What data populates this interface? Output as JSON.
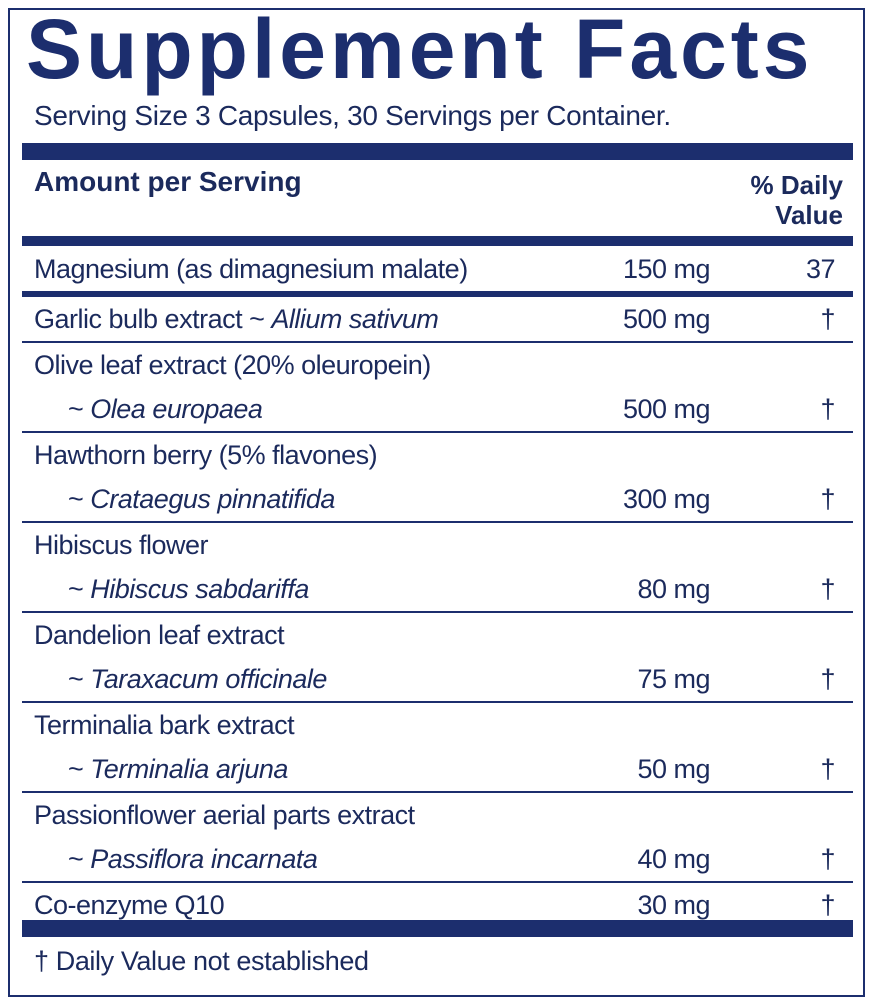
{
  "title": "Supplement Facts",
  "serving": "Serving Size 3 Capsules, 30 Servings per Container.",
  "header": {
    "amount_per_serving": "Amount per Serving",
    "daily_value_line1": "% Daily",
    "daily_value_line2": "Value"
  },
  "rows": [
    {
      "name": "Magnesium (as dimagnesium malate)",
      "latin": "",
      "amount": "150 mg",
      "dv": "37"
    },
    {
      "name": "Garlic bulb extract ~ ",
      "latin": "Allium sativum",
      "amount": "500 mg",
      "dv": "†"
    },
    {
      "name": "Olive leaf extract (20% oleuropein)",
      "latin": "Olea europaea",
      "amount": "500 mg",
      "dv": "†"
    },
    {
      "name": "Hawthorn berry (5% flavones)",
      "latin": "Crataegus pinnatifida",
      "amount": "300 mg",
      "dv": "†"
    },
    {
      "name": "Hibiscus flower",
      "latin": "Hibiscus sabdariffa",
      "amount": "80 mg",
      "dv": "†"
    },
    {
      "name": "Dandelion leaf extract",
      "latin": "Taraxacum officinale",
      "amount": "75 mg",
      "dv": "†"
    },
    {
      "name": "Terminalia bark extract",
      "latin": "Terminalia arjuna",
      "amount": "50 mg",
      "dv": "†"
    },
    {
      "name": "Passionflower aerial parts extract",
      "latin": "Passiflora incarnata",
      "amount": "40 mg",
      "dv": "†"
    },
    {
      "name": "Co-enzyme Q10",
      "latin": "",
      "amount": "30 mg",
      "dv": "†"
    }
  ],
  "tilde": "~ ",
  "footnote": "† Daily Value not established",
  "colors": {
    "navy": "#1c2e6e",
    "text": "#1b2a5c"
  }
}
